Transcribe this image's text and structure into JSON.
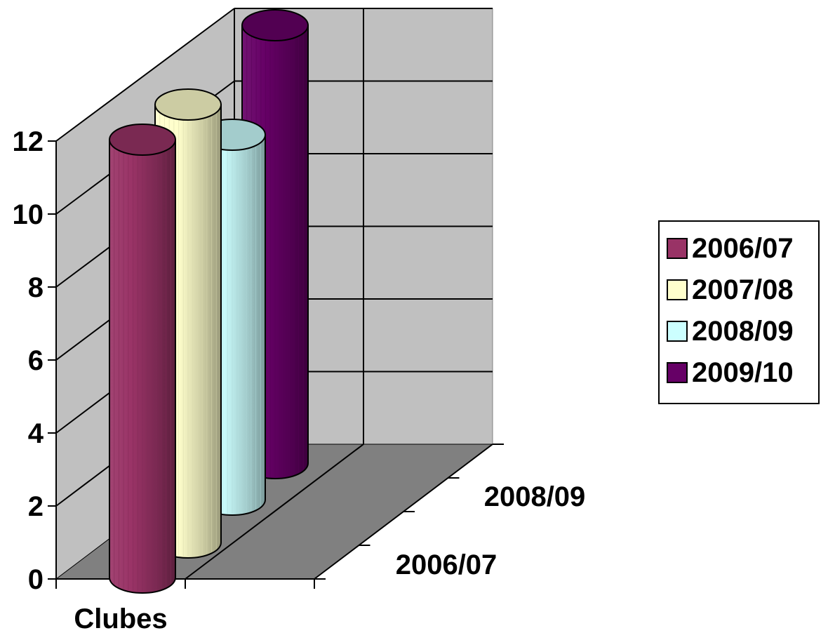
{
  "chart_data": {
    "type": "bar",
    "bar_shape": "cylinder-3d",
    "categories": [
      "Clubes"
    ],
    "depth_labels": [
      "2006/07",
      "2008/09"
    ],
    "series": [
      {
        "name": "2006/07",
        "values": [
          12
        ],
        "color": "#993366"
      },
      {
        "name": "2007/08",
        "values": [
          12
        ],
        "color": "#FFFFCC"
      },
      {
        "name": "2008/09",
        "values": [
          10
        ],
        "color": "#CCFFFF"
      },
      {
        "name": "2009/10",
        "values": [
          12
        ],
        "color": "#660066"
      }
    ],
    "y_ticks": [
      "0",
      "2",
      "4",
      "6",
      "8",
      "10",
      "12"
    ],
    "ylim": [
      0,
      12
    ],
    "grid": true,
    "legend": "right",
    "wall_color": "#C0C0C0",
    "floor_color": "#808080"
  }
}
